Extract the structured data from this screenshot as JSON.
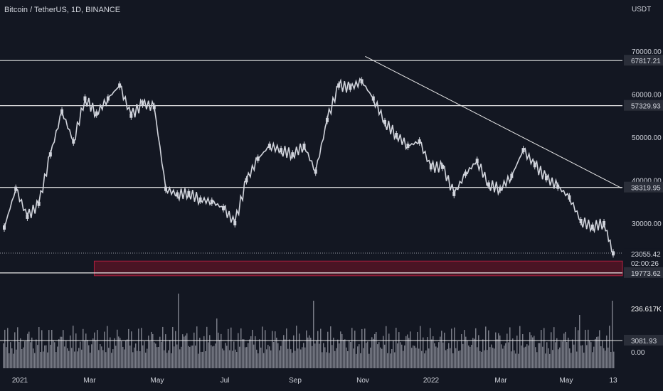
{
  "header": {
    "symbol": "Bitcoin / TetherUS",
    "interval": "1D",
    "exchange": "BINANCE",
    "currency": "USDT"
  },
  "colors": {
    "background": "#131722",
    "candle": "#d1d4dc",
    "level_line": "#e8e8e8",
    "zone_fill": "#4a1424",
    "zone_border": "#b02040",
    "volume": "#787b86",
    "label_bg": "#2a2e39"
  },
  "chart_data": {
    "type": "candlestick",
    "x": [
      "2021-01-01",
      "2021-01-11",
      "2021-01-21",
      "2021-01-31",
      "2021-02-10",
      "2021-02-20",
      "2021-03-02",
      "2021-03-12",
      "2021-03-22",
      "2021-04-01",
      "2021-04-11",
      "2021-04-21",
      "2021-05-01",
      "2021-05-11",
      "2021-05-21",
      "2021-05-31",
      "2021-06-10",
      "2021-06-20",
      "2021-06-30",
      "2021-07-10",
      "2021-07-20",
      "2021-07-30",
      "2021-08-09",
      "2021-08-19",
      "2021-08-29",
      "2021-09-08",
      "2021-09-18",
      "2021-09-28",
      "2021-10-08",
      "2021-10-18",
      "2021-10-28",
      "2021-11-07",
      "2021-11-17",
      "2021-11-27",
      "2021-12-07",
      "2021-12-17",
      "2021-12-27",
      "2022-01-06",
      "2022-01-16",
      "2022-01-26",
      "2022-02-05",
      "2022-02-15",
      "2022-02-25",
      "2022-03-07",
      "2022-03-17",
      "2022-03-27",
      "2022-04-06",
      "2022-04-16",
      "2022-04-26",
      "2022-05-06",
      "2022-05-16",
      "2022-05-26",
      "2022-06-05",
      "2022-06-13"
    ],
    "close": [
      29000,
      38000,
      31500,
      34500,
      46000,
      56000,
      49000,
      59000,
      55500,
      59000,
      62000,
      55000,
      57800,
      57000,
      38000,
      36700,
      37000,
      35500,
      35000,
      33500,
      30000,
      40000,
      45000,
      48000,
      47000,
      46000,
      48000,
      42000,
      54000,
      62000,
      61500,
      63000,
      59000,
      53500,
      50500,
      48000,
      49000,
      43000,
      43100,
      36800,
      41500,
      44500,
      39000,
      38000,
      41000,
      47000,
      43500,
      40500,
      38500,
      36000,
      30500,
      29200,
      30000,
      23000
    ],
    "high_of_range": 69000,
    "low_of_range": 28500,
    "volume": [
      1,
      1,
      1,
      1,
      1,
      1,
      1,
      1,
      1,
      1,
      1,
      1,
      1,
      1,
      1,
      1,
      1,
      1,
      1,
      1,
      1,
      1,
      1,
      1,
      1,
      1,
      1,
      1,
      1,
      1,
      1,
      1,
      1,
      1,
      1,
      1,
      1,
      1,
      1,
      1,
      1,
      1,
      1,
      1,
      1,
      1,
      1,
      1,
      1,
      1,
      1,
      1,
      1,
      1
    ],
    "horizontal_levels": [
      67817.21,
      57329.93,
      38319.95
    ],
    "support_level": 19773.62,
    "current_price": 23055.42,
    "countdown": "02:00:26",
    "trendline": {
      "from": [
        "2021-11-10",
        68800
      ],
      "to": [
        "2022-06-20",
        38200
      ]
    },
    "support_zone": {
      "from_date": "2021-03-20",
      "to_date": "2022-06-20",
      "low": 17800,
      "high": 21200
    },
    "y_ticks": [
      "70000.00",
      "60000.00",
      "50000.00",
      "40000.00",
      "30000.00"
    ],
    "x_tick_labels": [
      "2021",
      "Mar",
      "May",
      "Jul",
      "Sep",
      "Nov",
      "2022",
      "Mar",
      "May",
      "13"
    ],
    "volume_labels": {
      "max": "236.617K",
      "mid": "3081.93",
      "zero": "0.00"
    }
  }
}
